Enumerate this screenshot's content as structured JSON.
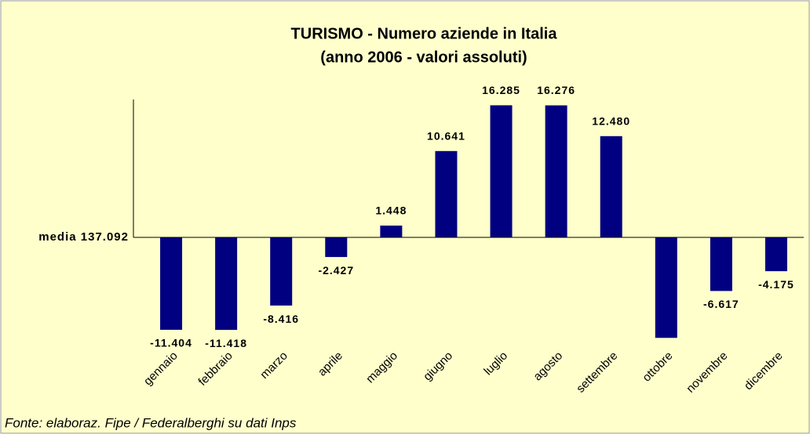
{
  "chart_data": {
    "type": "bar",
    "title": "TURISMO - Numero aziende in Italia",
    "subtitle": "(anno 2006 - valori assoluti)",
    "baseline_label": "media 137.092",
    "source": "Fonte: elaboraz. Fipe / Federalberghi su dati Inps",
    "categories": [
      "gennaio",
      "febbraio",
      "marzo",
      "aprile",
      "maggio",
      "giugno",
      "luglio",
      "agosto",
      "settembre",
      "ottobre",
      "novembre",
      "dicembre"
    ],
    "values": [
      -11404,
      -11418,
      -8416,
      -2427,
      1448,
      10641,
      16285,
      16276,
      12480,
      -12400,
      -6617,
      -4175
    ],
    "value_labels": [
      "-11.404",
      "-11.418",
      "-8.416",
      "-2.427",
      "1.448",
      "10.641",
      "16.285",
      "16.276",
      "12.480",
      null,
      "-6.617",
      "-4.175"
    ],
    "color": "#000080",
    "ylim": [
      -13000,
      17000
    ]
  }
}
